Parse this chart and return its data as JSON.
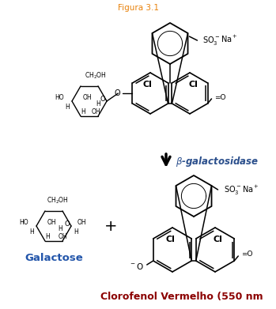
{
  "title_top": "Figura 3.1",
  "title_color": "#E8820C",
  "arrow_label": "β-galactosidase",
  "arrow_label_color": "#2B4F8C",
  "galactose_label": "Galactose",
  "galactose_color": "#2255AA",
  "bottom_label": "Clorofenol Vermelho (550 nm",
  "bottom_label_color": "#8B0000",
  "bg_color": "#ffffff",
  "fig_width": 3.49,
  "fig_height": 3.91,
  "dpi": 100
}
